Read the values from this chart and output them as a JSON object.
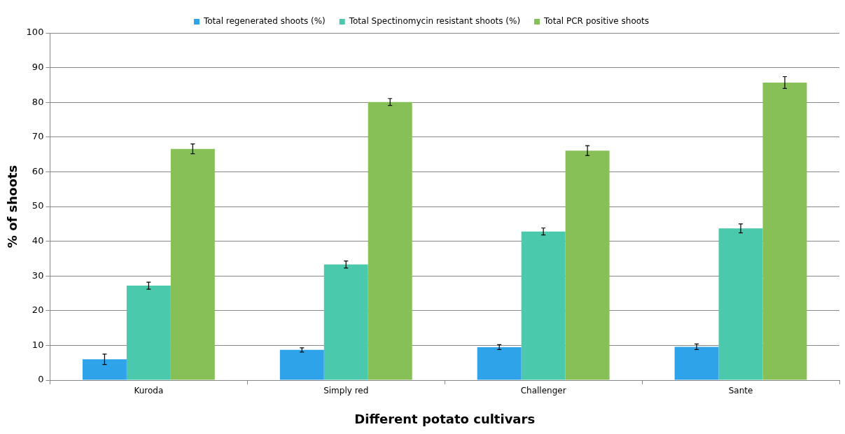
{
  "chart_data": {
    "type": "bar",
    "xlabel": "Different potato cultivars",
    "ylabel": "% of shoots",
    "categories": [
      "Kuroda",
      "Simply red",
      "Challenger",
      "Sante"
    ],
    "series": [
      {
        "name": "Total regenerated shoots (%)",
        "color": "#2ea3ea",
        "values": [
          6.0,
          8.7,
          9.5,
          9.6
        ],
        "errors": [
          1.5,
          0.6,
          0.7,
          0.8
        ]
      },
      {
        "name": "Total Spectinomycin resistant shoots (%)",
        "color": "#4bc9ad",
        "values": [
          27.2,
          33.3,
          42.8,
          43.7
        ],
        "errors": [
          1.0,
          1.0,
          1.0,
          1.3
        ]
      },
      {
        "name": "Total PCR positive shoots",
        "color": "#86c057",
        "values": [
          66.6,
          80.1,
          66.1,
          85.7
        ],
        "errors": [
          1.4,
          1.0,
          1.4,
          1.7
        ]
      }
    ],
    "ylim": [
      0,
      100
    ],
    "yticks": [
      0,
      10,
      20,
      30,
      40,
      50,
      60,
      70,
      80,
      90,
      100
    ],
    "grid": "y",
    "legend": "top"
  }
}
